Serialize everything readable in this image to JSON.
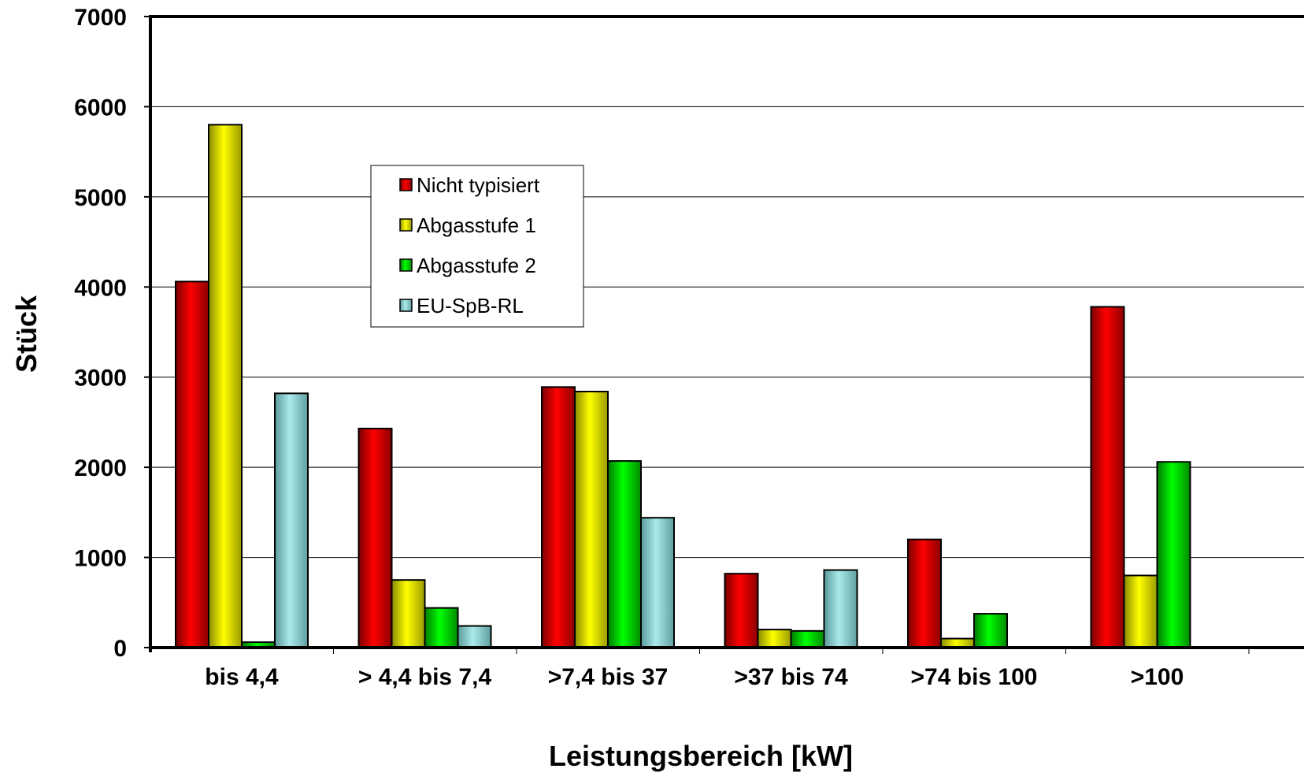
{
  "chart_data": {
    "type": "bar",
    "xlabel": "Leistungsbereich [kW]",
    "ylabel": "Stück",
    "ylim": [
      0,
      7000
    ],
    "yticks": [
      "0",
      "1000",
      "2000",
      "3000",
      "4000",
      "5000",
      "6000",
      "7000"
    ],
    "categories": [
      "bis 4,4",
      "> 4,4 bis 7,4",
      ">7,4 bis 37",
      ">37 bis 74",
      ">74 bis 100",
      ">100"
    ],
    "series": [
      {
        "name": "Nicht typisiert",
        "color": "#ff0000",
        "values": [
          4060,
          2430,
          2890,
          820,
          1200,
          3780
        ]
      },
      {
        "name": "Abgasstufe 1",
        "color": "#ffff00",
        "values": [
          5800,
          750,
          2840,
          200,
          100,
          800
        ]
      },
      {
        "name": "Abgasstufe 2",
        "color": "#00ff00",
        "values": [
          60,
          440,
          2070,
          185,
          375,
          2060
        ]
      },
      {
        "name": "EU-SpB-RL",
        "color": "#99dddd",
        "values": [
          2820,
          240,
          1440,
          860,
          0,
          0
        ]
      }
    ],
    "grid": true,
    "legend_position": "top-center"
  }
}
